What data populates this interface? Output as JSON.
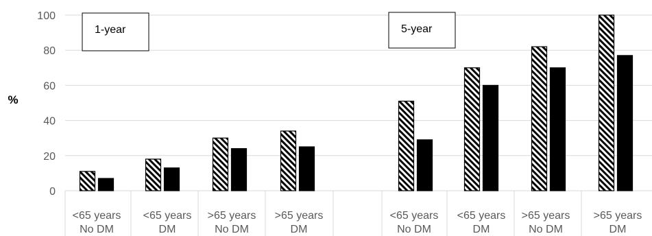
{
  "chart_data": {
    "type": "bar",
    "ylabel": "%",
    "ylim": [
      0,
      100
    ],
    "yticks": [
      "0",
      "20",
      "40",
      "60",
      "80",
      "100"
    ],
    "grid": true,
    "panels": [
      {
        "label": "1-year",
        "categories": [
          [
            "<65 years",
            "No DM"
          ],
          [
            "<65 years",
            "DM"
          ],
          [
            ">65 years",
            "No DM"
          ],
          [
            ">65 years",
            "DM"
          ]
        ],
        "series": [
          {
            "style": "hatched",
            "values": [
              11,
              18,
              30,
              34
            ]
          },
          {
            "style": "solid",
            "values": [
              7,
              13,
              24,
              25
            ]
          }
        ]
      },
      {
        "label": "5-year",
        "categories": [
          [
            "<65 years",
            "No DM"
          ],
          [
            "<65 years",
            "DM"
          ],
          [
            ">65 years",
            "No DM"
          ],
          [
            ">65 years",
            "DM"
          ]
        ],
        "series": [
          {
            "style": "hatched",
            "values": [
              51,
              70,
              82,
              100
            ]
          },
          {
            "style": "solid",
            "values": [
              29,
              60,
              70,
              77
            ]
          }
        ]
      }
    ],
    "colors": {
      "grid": "#d9d9d9",
      "bar": "#000000",
      "text": "#595959"
    }
  }
}
